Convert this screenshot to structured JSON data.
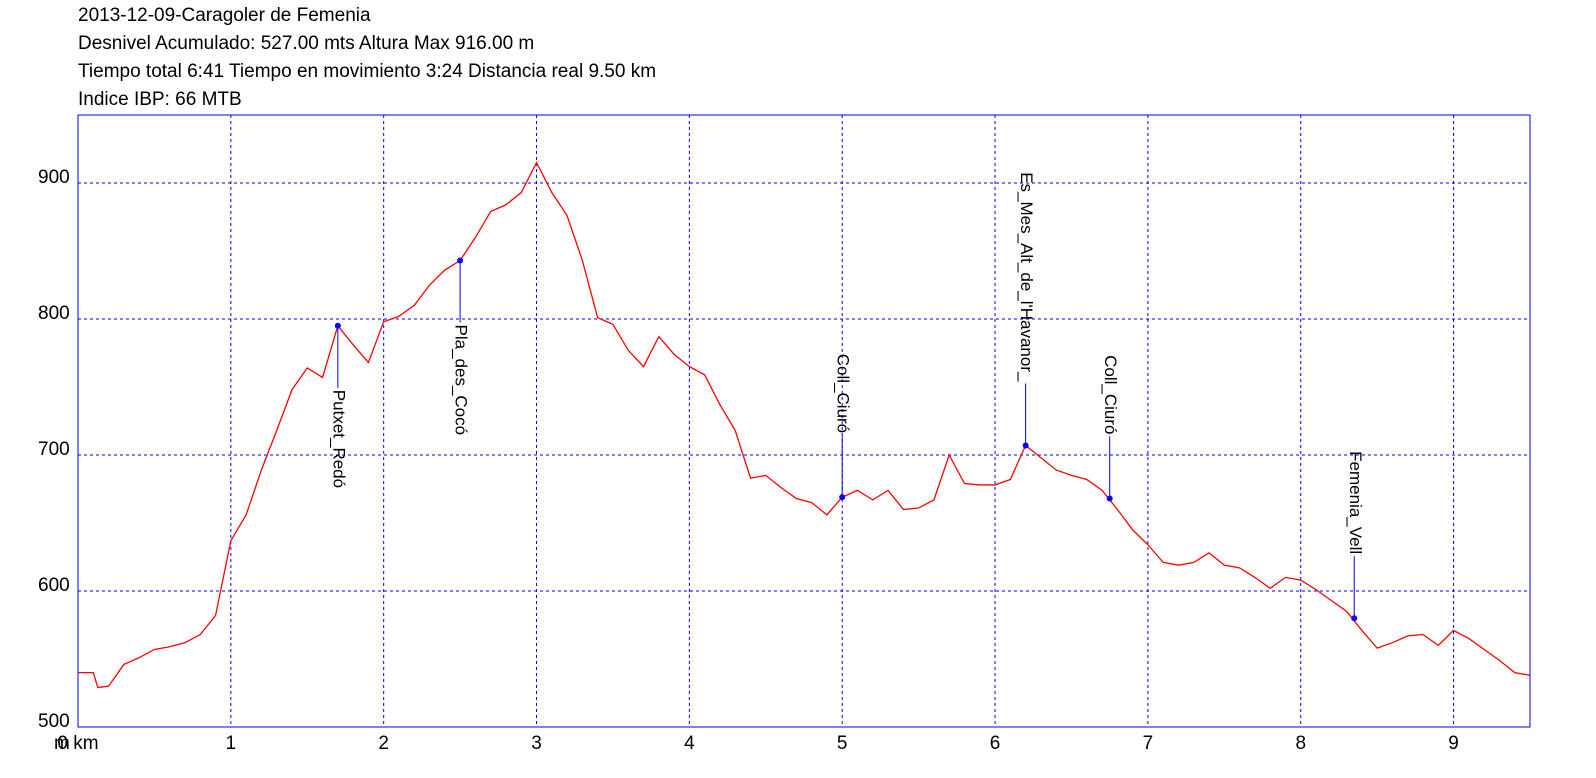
{
  "chart_data": {
    "type": "line",
    "title": "2013-12-09-Caragoler de Femenia",
    "subtitles": [
      "Desnivel Acumulado: 527.00 mts  Altura Max 916.00 m",
      "Tiempo total 6:41 Tiempo en movimiento 3:24 Distancia real 9.50 km",
      "Indice IBP: 66 MTB"
    ],
    "y_unit": "m",
    "x": [
      0,
      0.1,
      0.13,
      0.2,
      0.3,
      0.4,
      0.5,
      0.6,
      0.7,
      0.8,
      0.9,
      1.0,
      1.1,
      1.2,
      1.3,
      1.4,
      1.5,
      1.6,
      1.7,
      1.8,
      1.9,
      2.0,
      2.1,
      2.2,
      2.3,
      2.4,
      2.5,
      2.6,
      2.7,
      2.8,
      2.9,
      3.0,
      3.1,
      3.2,
      3.3,
      3.4,
      3.5,
      3.6,
      3.7,
      3.8,
      3.9,
      4.0,
      4.1,
      4.2,
      4.3,
      4.4,
      4.5,
      4.6,
      4.7,
      4.8,
      4.9,
      5.0,
      5.1,
      5.2,
      5.3,
      5.4,
      5.5,
      5.6,
      5.7,
      5.8,
      5.9,
      6.0,
      6.1,
      6.2,
      6.3,
      6.4,
      6.5,
      6.6,
      6.7,
      6.8,
      6.9,
      7.0,
      7.1,
      7.2,
      7.3,
      7.4,
      7.5,
      7.6,
      7.7,
      7.8,
      7.9,
      8.0,
      8.1,
      8.2,
      8.3,
      8.4,
      8.5,
      8.6,
      8.7,
      8.8,
      8.9,
      9.0,
      9.1,
      9.2,
      9.3,
      9.4,
      9.5
    ],
    "series": [
      {
        "color": "#ff0000",
        "values": [
          540,
          540,
          529,
          530,
          546,
          551,
          557,
          559,
          562,
          568,
          582,
          637,
          656,
          689,
          718,
          748,
          764,
          757,
          795,
          781,
          768,
          798,
          802,
          810,
          825,
          836,
          843,
          860,
          879,
          884,
          893,
          915,
          893,
          876,
          843,
          801,
          796,
          777,
          765,
          787,
          774,
          765,
          759,
          737,
          718,
          683,
          685,
          676,
          668,
          665,
          656,
          669,
          674,
          667,
          674,
          660,
          661,
          667,
          700,
          679,
          678,
          678,
          682,
          707,
          698,
          689,
          685,
          682,
          674,
          660,
          645,
          634,
          621,
          619,
          621,
          628,
          619,
          617,
          610,
          602,
          610,
          608,
          601,
          593,
          585,
          571,
          558,
          562,
          567,
          568,
          560,
          571,
          565,
          557,
          549,
          540,
          538
        ]
      }
    ],
    "waypoints": {
      "color": "#0000ff",
      "labels": [
        "Putxet_Redó",
        "Pla_des_Cocó",
        "Coll_Ciuró",
        "Es_Mes_Alt_de_l'Havanor_",
        "Coll_Ciuró",
        "Femenia_Vell"
      ],
      "x": [
        1.7,
        2.5,
        5.0,
        6.2,
        6.75,
        8.35
      ],
      "values": [
        795,
        843,
        669,
        707,
        668,
        580
      ]
    },
    "xlim": [
      0,
      9.5
    ],
    "xticks": [
      {
        "value": 0,
        "label": "0 km"
      },
      1,
      2,
      3,
      4,
      5,
      6,
      7,
      8,
      9
    ],
    "ylim": [
      500,
      950
    ],
    "yticks": [
      500,
      600,
      700,
      800,
      900
    ],
    "grid": true,
    "grid_color": "#0000ff",
    "frame_color": "#0000ff"
  }
}
